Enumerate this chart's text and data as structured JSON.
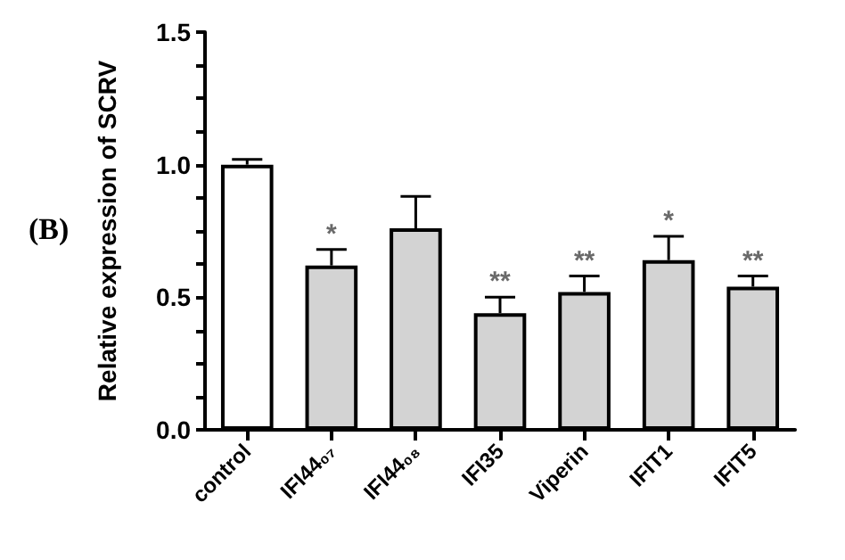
{
  "chart_data": {
    "type": "bar",
    "ylabel": "Relative expression of SCRV",
    "categories": [
      "control",
      "IFI44₀₇",
      "IFI44₀₈",
      "IFI35",
      "Viperin",
      "IFIT1",
      "IFIT5"
    ],
    "values": [
      1.0,
      0.62,
      0.76,
      0.44,
      0.52,
      0.64,
      0.54
    ],
    "colors": [
      "#ffffff",
      "#d3d3d3",
      "#d3d3d3",
      "#d3d3d3",
      "#d3d3d3",
      "#d3d3d3",
      "#d3d3d3"
    ],
    "errors": [
      [
        1.0,
        1.02
      ],
      [
        0.62,
        0.68
      ],
      [
        0.76,
        0.88
      ],
      [
        0.44,
        0.5
      ],
      [
        0.52,
        0.58
      ],
      [
        0.64,
        0.73
      ],
      [
        0.54,
        0.58
      ]
    ],
    "ylim": [
      0,
      1.5
    ],
    "yticks": [
      {
        "value": 0,
        "label": "0.0"
      },
      {
        "value": 0.125,
        "label": null
      },
      {
        "value": 0.25,
        "label": null
      },
      {
        "value": 0.375,
        "label": null
      },
      0.5,
      {
        "value": 0.625,
        "label": null
      },
      {
        "value": 0.75,
        "label": null
      },
      {
        "value": 0.875,
        "label": null
      },
      {
        "value": 1,
        "label": "1.0"
      },
      {
        "value": 1.125,
        "label": null
      },
      {
        "value": 1.25,
        "label": null
      },
      {
        "value": 1.375,
        "label": null
      },
      1.5
    ],
    "grid": false,
    "annotations": [
      "(B)",
      {
        "text": "*",
        "x": "IFI44₀₇",
        "y": 0.68
      },
      {
        "text": "**",
        "x": "IFI35",
        "y": 0.5
      },
      {
        "text": "**",
        "x": "Viperin",
        "y": 0.58
      },
      {
        "text": "*",
        "x": "IFIT1",
        "y": 0.73
      },
      {
        "text": "**",
        "x": "IFIT5",
        "y": 0.58
      }
    ]
  }
}
